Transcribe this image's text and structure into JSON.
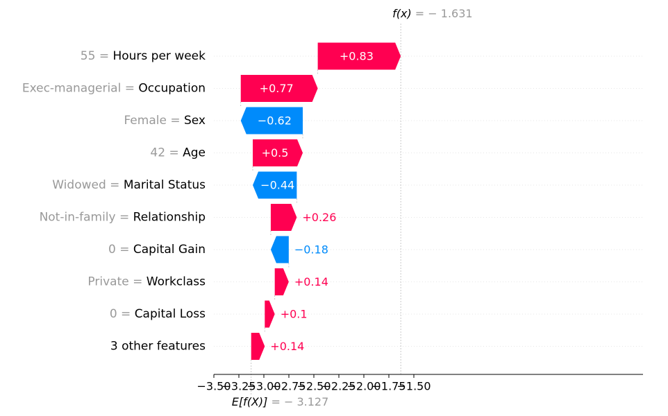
{
  "chart_data": {
    "type": "bar",
    "title": "",
    "xlabel": "",
    "ylabel": "",
    "xlim": [
      -3.5,
      -1.35
    ],
    "base_value": -3.127,
    "fx_value": -1.631,
    "base_label": {
      "prefix": "E[f(X)]",
      "value_text": " = − 3.127"
    },
    "fx_label": {
      "prefix": "f(x)",
      "value_text": " = − 1.631"
    },
    "x_ticks": [
      -3.5,
      -3.25,
      -3.0,
      -2.75,
      -2.5,
      -2.25,
      -2.0,
      -1.75,
      -1.5
    ],
    "x_tick_labels": [
      "−3.50",
      "−3.25",
      "−3.00",
      "−2.75",
      "−2.50",
      "−2.25",
      "−2.00",
      "−1.75",
      "−1.50"
    ],
    "features": [
      {
        "value": "55",
        "name": "Hours per week",
        "shap": 0.83,
        "label": "+0.83",
        "start": -2.461,
        "end": -1.631
      },
      {
        "value": "Exec-managerial",
        "name": "Occupation",
        "shap": 0.77,
        "label": "+0.77",
        "start": -3.231,
        "end": -2.461
      },
      {
        "value": "Female",
        "name": "Sex",
        "shap": -0.62,
        "label": "−0.62",
        "start": -2.611,
        "end": -3.231
      },
      {
        "value": "42",
        "name": "Age",
        "shap": 0.5,
        "label": "+0.5",
        "start": -3.111,
        "end": -2.611
      },
      {
        "value": "Widowed",
        "name": "Marital Status",
        "shap": -0.44,
        "label": "−0.44",
        "start": -2.671,
        "end": -3.111
      },
      {
        "value": "Not-in-family",
        "name": "Relationship",
        "shap": 0.26,
        "label": "+0.26",
        "start": -2.931,
        "end": -2.671
      },
      {
        "value": "0",
        "name": "Capital Gain",
        "shap": -0.18,
        "label": "−0.18",
        "start": -2.751,
        "end": -2.931
      },
      {
        "value": "Private",
        "name": "Workclass",
        "shap": 0.14,
        "label": "+0.14",
        "start": -2.891,
        "end": -2.751
      },
      {
        "value": "0",
        "name": "Capital Loss",
        "shap": 0.1,
        "label": "+0.1",
        "start": -2.991,
        "end": -2.891
      },
      {
        "value": "",
        "name": "3 other features",
        "shap": 0.14,
        "label": "+0.14",
        "start": -3.127,
        "end": -2.991
      }
    ],
    "colors": {
      "positive": "#ff0051",
      "negative": "#008bfb",
      "axis": "#000000",
      "muted": "#999999",
      "grid": "#e6e6e6"
    }
  }
}
